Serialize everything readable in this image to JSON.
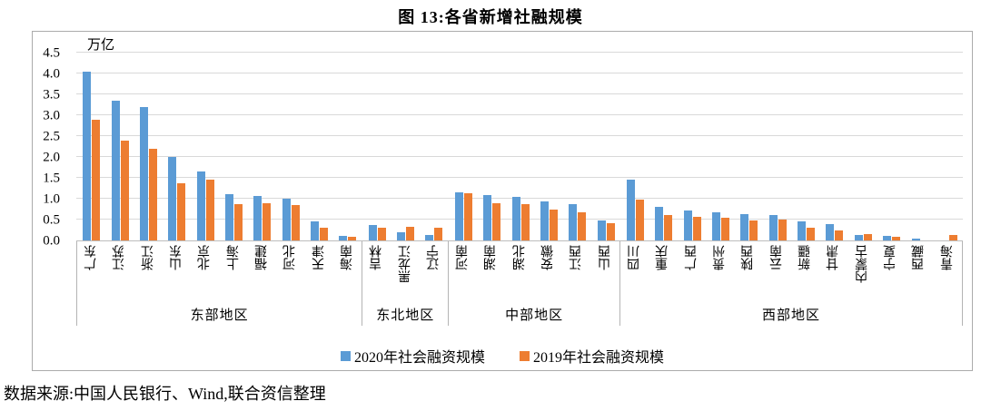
{
  "figure": {
    "title": "图 13:各省新增社融规模",
    "unit_label": "万亿",
    "source": "数据来源:中国人民银行、Wind,联合资信整理"
  },
  "colors": {
    "series_2020": "#5B9BD5",
    "series_2019": "#ED7D31",
    "gridline": "#D9D9D9",
    "axis_border": "#ABABAB"
  },
  "chart_data": {
    "type": "bar",
    "title": "图 13:各省新增社融规模",
    "ylabel": "万亿",
    "xlabel": "",
    "ylim": [
      0,
      4.5
    ],
    "ytick_step": 0.5,
    "y_ticks": [
      "4.5",
      "4.0",
      "3.5",
      "3.0",
      "2.5",
      "2.0",
      "1.5",
      "1.0",
      "0.5",
      "0.0"
    ],
    "grid": true,
    "legend_position": "bottom",
    "groups": [
      {
        "region": "东部地区",
        "categories": [
          "广东",
          "江苏",
          "浙江",
          "山东",
          "北京",
          "上海",
          "福建",
          "河北",
          "天津",
          "海南"
        ]
      },
      {
        "region": "东北地区",
        "categories": [
          "吉林",
          "黑龙江",
          "辽宁"
        ]
      },
      {
        "region": "中部地区",
        "categories": [
          "河南",
          "湖南",
          "湖北",
          "安徽",
          "江西",
          "山西"
        ]
      },
      {
        "region": "西部地区",
        "categories": [
          "四川",
          "重庆",
          "广西",
          "贵州",
          "陕西",
          "云南",
          "新疆",
          "甘肃",
          "内蒙古",
          "宁夏",
          "西藏",
          "青海"
        ]
      }
    ],
    "series": [
      {
        "name": "2020年社会融资规模",
        "color": "#5B9BD5",
        "values": [
          4.05,
          3.35,
          3.2,
          2.0,
          1.65,
          1.1,
          1.06,
          1.01,
          0.46,
          0.1,
          0.36,
          0.2,
          0.14,
          1.15,
          1.08,
          1.05,
          0.93,
          0.86,
          0.47,
          1.45,
          0.81,
          0.71,
          0.67,
          0.64,
          0.6,
          0.46,
          0.4,
          0.12,
          0.1,
          0.05,
          0.0
        ]
      },
      {
        "name": "2019年社会融资规模",
        "color": "#ED7D31",
        "values": [
          2.9,
          2.4,
          2.2,
          1.38,
          1.45,
          0.88,
          0.9,
          0.84,
          0.31,
          0.09,
          0.31,
          0.32,
          0.3,
          1.14,
          0.89,
          0.88,
          0.73,
          0.68,
          0.42,
          0.98,
          0.6,
          0.56,
          0.54,
          0.47,
          0.51,
          0.3,
          0.24,
          0.15,
          0.09,
          0.0,
          0.14
        ]
      }
    ]
  }
}
